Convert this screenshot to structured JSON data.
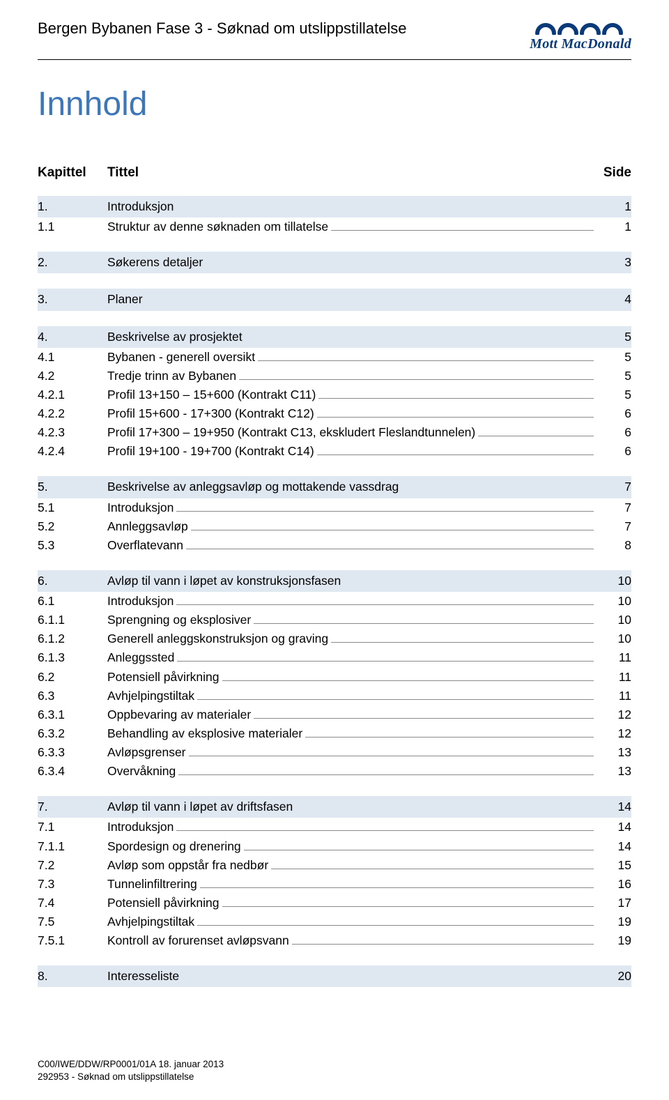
{
  "colors": {
    "accent_blue": "#3d77b8",
    "band_bg": "#dfe7f0",
    "logo_blue": "#0b3a7a",
    "rule": "#000000",
    "leader": "#8a8a8a",
    "text": "#000000",
    "background": "#ffffff"
  },
  "header": {
    "doc_title": "Bergen Bybanen Fase 3 - Søknad om utslippstillatelse",
    "logo_text": "Mott MacDonald"
  },
  "toc": {
    "heading": "Innhold",
    "col_kapittel": "Kapittel",
    "col_tittel": "Tittel",
    "col_side": "Side"
  },
  "sections": [
    {
      "rows": [
        {
          "num": "1.",
          "title": "Introduksjon",
          "page": "1",
          "level": 1
        },
        {
          "num": "1.1",
          "title": "Struktur av denne søknaden om tillatelse",
          "page": "1",
          "level": 2
        }
      ]
    },
    {
      "rows": [
        {
          "num": "2.",
          "title": "Søkerens detaljer",
          "page": "3",
          "level": 1
        }
      ]
    },
    {
      "rows": [
        {
          "num": "3.",
          "title": "Planer",
          "page": "4",
          "level": 1
        }
      ]
    },
    {
      "rows": [
        {
          "num": "4.",
          "title": "Beskrivelse av prosjektet",
          "page": "5",
          "level": 1
        },
        {
          "num": "4.1",
          "title": "Bybanen - generell oversikt",
          "page": "5",
          "level": 2
        },
        {
          "num": "4.2",
          "title": "Tredje trinn av Bybanen",
          "page": "5",
          "level": 2
        },
        {
          "num": "4.2.1",
          "title": "Profil 13+150 – 15+600 (Kontrakt C11)",
          "page": "5",
          "level": 3
        },
        {
          "num": "4.2.2",
          "title": "Profil 15+600 - 17+300 (Kontrakt C12)",
          "page": "6",
          "level": 3
        },
        {
          "num": "4.2.3",
          "title": "Profil 17+300 – 19+950 (Kontrakt C13, ekskludert Fleslandtunnelen)",
          "page": "6",
          "level": 3
        },
        {
          "num": "4.2.4",
          "title": "Profil 19+100 - 19+700 (Kontrakt C14)",
          "page": "6",
          "level": 3
        }
      ]
    },
    {
      "rows": [
        {
          "num": "5.",
          "title": "Beskrivelse av anleggsavløp og mottakende vassdrag",
          "page": "7",
          "level": 1
        },
        {
          "num": "5.1",
          "title": "Introduksjon",
          "page": "7",
          "level": 2
        },
        {
          "num": "5.2",
          "title": "Annleggsavløp",
          "page": "7",
          "level": 2
        },
        {
          "num": "5.3",
          "title": "Overflatevann",
          "page": "8",
          "level": 2
        }
      ]
    },
    {
      "rows": [
        {
          "num": "6.",
          "title": "Avløp til vann i løpet av konstruksjonsfasen",
          "page": "10",
          "level": 1
        },
        {
          "num": "6.1",
          "title": "Introduksjon",
          "page": "10",
          "level": 2
        },
        {
          "num": "6.1.1",
          "title": "Sprengning og eksplosiver",
          "page": "10",
          "level": 3
        },
        {
          "num": "6.1.2",
          "title": "Generell anleggskonstruksjon og graving",
          "page": "10",
          "level": 3
        },
        {
          "num": "6.1.3",
          "title": "Anleggssted",
          "page": "11",
          "level": 3
        },
        {
          "num": "6.2",
          "title": "Potensiell påvirkning",
          "page": "11",
          "level": 2
        },
        {
          "num": "6.3",
          "title": "Avhjelpingstiltak",
          "page": "11",
          "level": 2
        },
        {
          "num": "6.3.1",
          "title": "Oppbevaring av materialer",
          "page": "12",
          "level": 3
        },
        {
          "num": "6.3.2",
          "title": "Behandling av eksplosive materialer",
          "page": "12",
          "level": 3
        },
        {
          "num": "6.3.3",
          "title": "Avløpsgrenser",
          "page": "13",
          "level": 3
        },
        {
          "num": "6.3.4",
          "title": "Overvåkning",
          "page": "13",
          "level": 3
        }
      ]
    },
    {
      "rows": [
        {
          "num": "7.",
          "title": "Avløp til vann i løpet av driftsfasen",
          "page": "14",
          "level": 1
        },
        {
          "num": "7.1",
          "title": "Introduksjon",
          "page": "14",
          "level": 2
        },
        {
          "num": "7.1.1",
          "title": "Spordesign og drenering",
          "page": "14",
          "level": 3
        },
        {
          "num": "7.2",
          "title": "Avløp som oppstår fra nedbør",
          "page": "15",
          "level": 2
        },
        {
          "num": "7.3",
          "title": "Tunnelinfiltrering",
          "page": "16",
          "level": 2
        },
        {
          "num": "7.4",
          "title": "Potensiell påvirkning",
          "page": "17",
          "level": 2
        },
        {
          "num": "7.5",
          "title": "Avhjelpingstiltak",
          "page": "19",
          "level": 2
        },
        {
          "num": "7.5.1",
          "title": "Kontroll av forurenset avløpsvann",
          "page": "19",
          "level": 3
        }
      ]
    },
    {
      "rows": [
        {
          "num": "8.",
          "title": "Interesseliste",
          "page": "20",
          "level": 1
        }
      ]
    }
  ],
  "footer": {
    "line1": "C00/IWE/DDW/RP0001/01A 18. januar 2013",
    "line2": "292953 - Søknad om utslippstillatelse"
  }
}
